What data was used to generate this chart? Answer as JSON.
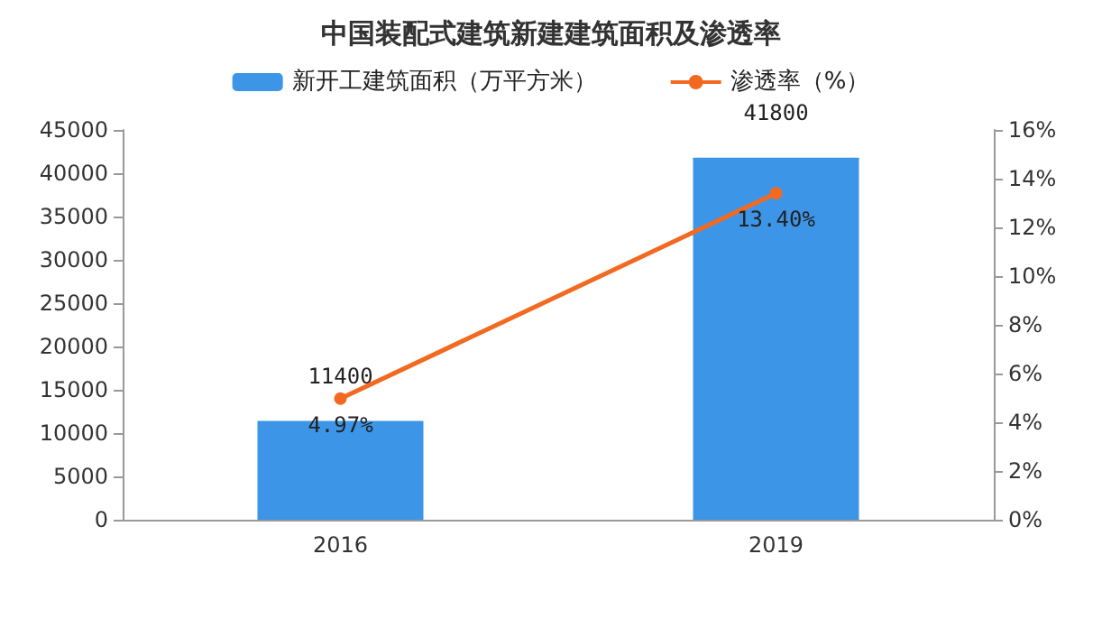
{
  "chart_data": {
    "type": "bar",
    "title": "中国装配式建筑新建建筑面积及渗透率",
    "categories": [
      "2016",
      "2019"
    ],
    "series": [
      {
        "name": "新开工建筑面积（万平方米）",
        "color": "#3d95e8",
        "values": [
          11400,
          41800
        ],
        "value_labels": [
          "11400",
          "41800"
        ]
      },
      {
        "name": "渗透率（%）",
        "type": "line",
        "axis": "y2",
        "color": "#f26a21",
        "values": [
          4.97,
          13.4
        ],
        "value_labels": [
          "4.97%",
          "13.40%"
        ],
        "marker": "circle",
        "line_style": "solid"
      }
    ],
    "ylim": [
      0,
      45000
    ],
    "yticks": [
      0,
      5000,
      10000,
      15000,
      20000,
      25000,
      30000,
      35000,
      40000,
      45000
    ],
    "y2lim": [
      0,
      16
    ],
    "y2ticks": [
      {
        "value": 0,
        "label": "0%"
      },
      {
        "value": 2,
        "label": "2%"
      },
      {
        "value": 4,
        "label": "4%"
      },
      {
        "value": 6,
        "label": "6%"
      },
      {
        "value": 8,
        "label": "8%"
      },
      {
        "value": 10,
        "label": "10%"
      },
      {
        "value": 12,
        "label": "12%"
      },
      {
        "value": 14,
        "label": "14%"
      },
      {
        "value": 16,
        "label": "16%"
      }
    ],
    "grid": false,
    "legend": "top"
  }
}
